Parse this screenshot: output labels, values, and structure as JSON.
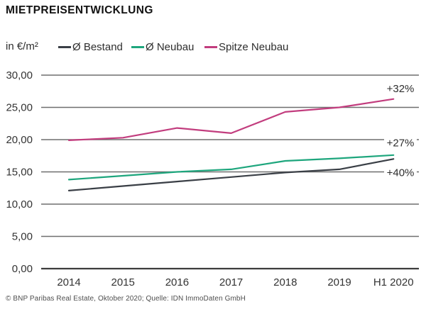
{
  "title": "MIETPREISENTWICKLUNG",
  "legend": {
    "unit_label": "in €/m²"
  },
  "footer": "© BNP Paribas Real Estate, Oktober 2020; Quelle: IDN ImmoDaten GmbH",
  "colors": {
    "bestand_line": "#3a3f46",
    "neubau_line": "#1ea67d",
    "spitze_line": "#c23d7e",
    "gridline": "#6f6f6f",
    "zero_axis": "#3c3c3c",
    "label_text": "#333333",
    "annotation_text": "#2e2e2e",
    "background": "#ffffff"
  },
  "chart_data": {
    "type": "line",
    "title": "MIETPREISENTWICKLUNG",
    "ylabel": "in €/m²",
    "xlabel": "",
    "categories": [
      "2014",
      "2015",
      "2016",
      "2017",
      "2018",
      "2019",
      "H1 2020"
    ],
    "series": [
      {
        "name": "Ø Bestand",
        "color": "#3a3f46",
        "values": [
          12.1,
          12.8,
          13.5,
          14.2,
          14.9,
          15.4,
          17.0
        ],
        "change_label": "+40%"
      },
      {
        "name": "Ø Neubau",
        "color": "#1ea67d",
        "values": [
          13.8,
          14.4,
          15.0,
          15.4,
          16.7,
          17.1,
          17.6
        ],
        "change_label": "+27%"
      },
      {
        "name": "Spitze Neubau",
        "color": "#c23d7e",
        "values": [
          19.9,
          20.3,
          21.8,
          21.0,
          24.3,
          25.0,
          26.3
        ],
        "change_label": "+32%"
      }
    ],
    "ylim": [
      0,
      30
    ],
    "ytick_step": 5,
    "ytick_labels": [
      "0,00",
      "5,00",
      "10,00",
      "15,00",
      "20,00",
      "25,00",
      "30,00"
    ],
    "grid": true,
    "legend_position": "top",
    "annotations": [
      {
        "text": "+32%",
        "y_value": 27.9
      },
      {
        "text": "+27%",
        "y_value": 19.5
      },
      {
        "text": "+40%",
        "y_value": 14.9
      }
    ]
  }
}
